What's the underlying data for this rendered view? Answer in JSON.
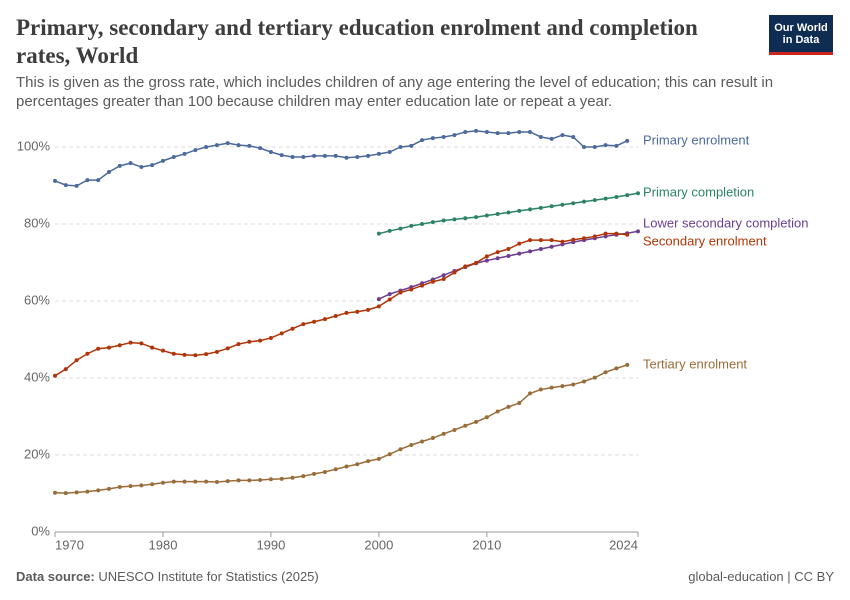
{
  "chart_data": {
    "type": "line",
    "title": "Primary, secondary and tertiary education enrolment and completion rates, World",
    "subtitle": "This is given as the gross rate, which includes children of any age entering the level of education; this can result in percentages greater than 100 because children may enter education late or repeat a year.",
    "logo": "Our World in Data",
    "source_label": "Data source:",
    "source": "UNESCO Institute for Statistics (2025)",
    "license": "global-education | CC BY",
    "x": [
      1970,
      1971,
      1972,
      1973,
      1974,
      1975,
      1976,
      1977,
      1978,
      1979,
      1980,
      1981,
      1982,
      1983,
      1984,
      1985,
      1986,
      1987,
      1988,
      1989,
      1990,
      1991,
      1992,
      1993,
      1994,
      1995,
      1996,
      1997,
      1998,
      1999,
      2000,
      2001,
      2002,
      2003,
      2004,
      2005,
      2006,
      2007,
      2008,
      2009,
      2010,
      2011,
      2012,
      2013,
      2014,
      2015,
      2016,
      2017,
      2018,
      2019,
      2020,
      2021,
      2022,
      2023,
      2024
    ],
    "xlim": [
      1970,
      2024
    ],
    "xticks": [
      1970,
      1980,
      1990,
      2000,
      2010,
      2024
    ],
    "ylim": [
      0,
      100
    ],
    "yticks": [
      {
        "value": 0,
        "label": "0%"
      },
      {
        "value": 20,
        "label": "20%"
      },
      {
        "value": 40,
        "label": "40%"
      },
      {
        "value": 60,
        "label": "60%"
      },
      {
        "value": 80,
        "label": "80%"
      },
      {
        "value": 100,
        "label": "100%"
      }
    ],
    "grid": true,
    "series": [
      {
        "name": "Primary enrolment",
        "color": "#4c6a9c",
        "values": [
          91.2,
          90.1,
          89.9,
          91.4,
          91.4,
          93.5,
          95.1,
          95.8,
          94.8,
          95.3,
          96.4,
          97.4,
          98.2,
          99.2,
          100,
          100.5,
          101,
          100.5,
          100.3,
          99.7,
          98.7,
          97.9,
          97.4,
          97.4,
          97.7,
          97.7,
          97.7,
          97.2,
          97.4,
          97.7,
          98.2,
          98.7,
          100,
          100.3,
          101.8,
          102.3,
          102.6,
          103.1,
          103.9,
          104.2,
          103.9,
          103.6,
          103.6,
          103.9,
          103.9,
          102.6,
          102.1,
          103.1,
          102.6,
          100,
          100,
          100.5,
          100.3,
          101.6,
          null
        ]
      },
      {
        "name": "Primary completion",
        "color": "#2c8465",
        "values": [
          null,
          null,
          null,
          null,
          null,
          null,
          null,
          null,
          null,
          null,
          null,
          null,
          null,
          null,
          null,
          null,
          null,
          null,
          null,
          null,
          null,
          null,
          null,
          null,
          null,
          null,
          null,
          null,
          null,
          null,
          77.5,
          78.2,
          78.8,
          79.5,
          80,
          80.5,
          80.9,
          81.2,
          81.5,
          81.8,
          82.2,
          82.6,
          83,
          83.4,
          83.8,
          84.2,
          84.6,
          85,
          85.4,
          85.8,
          86.2,
          86.6,
          87,
          87.5,
          88
        ]
      },
      {
        "name": "Lower secondary completion",
        "color": "#6d3e91",
        "values": [
          null,
          null,
          null,
          null,
          null,
          null,
          null,
          null,
          null,
          null,
          null,
          null,
          null,
          null,
          null,
          null,
          null,
          null,
          null,
          null,
          null,
          null,
          null,
          null,
          null,
          null,
          null,
          null,
          null,
          null,
          60.5,
          61.8,
          62.7,
          63.6,
          64.6,
          65.6,
          66.7,
          67.8,
          68.8,
          69.8,
          70.5,
          71.1,
          71.7,
          72.3,
          72.9,
          73.5,
          74.1,
          74.7,
          75.3,
          75.8,
          76.3,
          76.8,
          77.2,
          77.6,
          78.1
        ]
      },
      {
        "name": "Secondary enrolment",
        "color": "#b13507",
        "values": [
          40.6,
          42.3,
          44.6,
          46.3,
          47.6,
          47.9,
          48.5,
          49.2,
          49,
          47.9,
          47.1,
          46.3,
          46,
          45.9,
          46.2,
          46.8,
          47.7,
          48.8,
          49.4,
          49.7,
          50.4,
          51.6,
          52.8,
          54,
          54.6,
          55.3,
          56.1,
          56.9,
          57.2,
          57.7,
          58.6,
          60.4,
          62.2,
          63,
          64,
          65,
          65.7,
          67.4,
          69,
          69.9,
          71.6,
          72.7,
          73.5,
          74.9,
          75.8,
          75.8,
          75.8,
          75.4,
          75.9,
          76.3,
          76.8,
          77.5,
          77.5,
          77.2,
          null
        ]
      },
      {
        "name": "Tertiary enrolment",
        "color": "#996d39",
        "values": [
          10.2,
          10.1,
          10.3,
          10.5,
          10.8,
          11.2,
          11.7,
          11.9,
          12.1,
          12.4,
          12.8,
          13.1,
          13.1,
          13.1,
          13.1,
          13,
          13.2,
          13.4,
          13.4,
          13.5,
          13.7,
          13.8,
          14.1,
          14.5,
          15.1,
          15.6,
          16.3,
          17,
          17.6,
          18.4,
          19,
          20.2,
          21.5,
          22.6,
          23.5,
          24.4,
          25.5,
          26.5,
          27.6,
          28.6,
          29.8,
          31.3,
          32.5,
          33.5,
          36,
          37,
          37.5,
          37.9,
          38.3,
          39.1,
          40.1,
          41.5,
          42.5,
          43.4,
          null
        ]
      }
    ]
  }
}
